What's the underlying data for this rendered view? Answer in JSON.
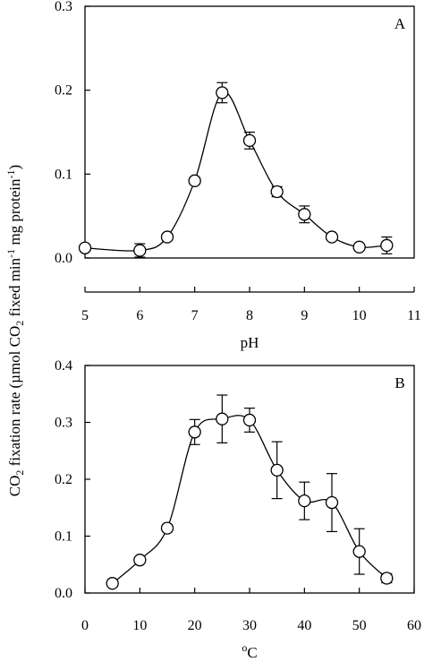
{
  "y_axis_label": "CO2 fixation rate (µmol CO2 fixed min-1 mg protein-1)",
  "chart_data": [
    {
      "type": "scatter",
      "panel_label": "A",
      "xlabel": "pH",
      "ylabel": "",
      "xlim": [
        5,
        11
      ],
      "ylim": [
        0,
        0.3
      ],
      "x_ticks": [
        "5",
        "6",
        "7",
        "8",
        "9",
        "10",
        "11"
      ],
      "y_ticks": [
        "0.0",
        "0.1",
        "0.2",
        "0.3"
      ],
      "grid": false,
      "marker": "open-circle",
      "connecting_line": "smooth",
      "series": [
        {
          "x": [
            5.0,
            6.0,
            6.5,
            7.0,
            7.5,
            8.0,
            8.5,
            9.0,
            9.5,
            10.0,
            10.5
          ],
          "y": [
            0.012,
            0.009,
            0.025,
            0.092,
            0.197,
            0.14,
            0.079,
            0.052,
            0.025,
            0.013,
            0.015
          ],
          "error": [
            0.004,
            0.008,
            0.004,
            0.004,
            0.012,
            0.01,
            0.006,
            0.01,
            0.003,
            0.002,
            0.01
          ]
        }
      ]
    },
    {
      "type": "scatter",
      "panel_label": "B",
      "xlabel": "oC",
      "ylabel": "",
      "xlim": [
        0,
        60
      ],
      "ylim": [
        0,
        0.4
      ],
      "x_ticks": [
        "0",
        "10",
        "20",
        "30",
        "40",
        "50",
        "60"
      ],
      "y_ticks": [
        "0.0",
        "0.1",
        "0.2",
        "0.3",
        "0.4"
      ],
      "grid": false,
      "marker": "open-circle",
      "connecting_line": "smooth",
      "series": [
        {
          "x": [
            5,
            10,
            15,
            20,
            25,
            30,
            35,
            40,
            45,
            50,
            55
          ],
          "y": [
            0.017,
            0.058,
            0.114,
            0.283,
            0.306,
            0.304,
            0.216,
            0.162,
            0.159,
            0.073,
            0.026
          ],
          "error": [
            0.005,
            0.005,
            0.006,
            0.022,
            0.042,
            0.021,
            0.05,
            0.033,
            0.051,
            0.04,
            0.008
          ]
        }
      ]
    }
  ]
}
